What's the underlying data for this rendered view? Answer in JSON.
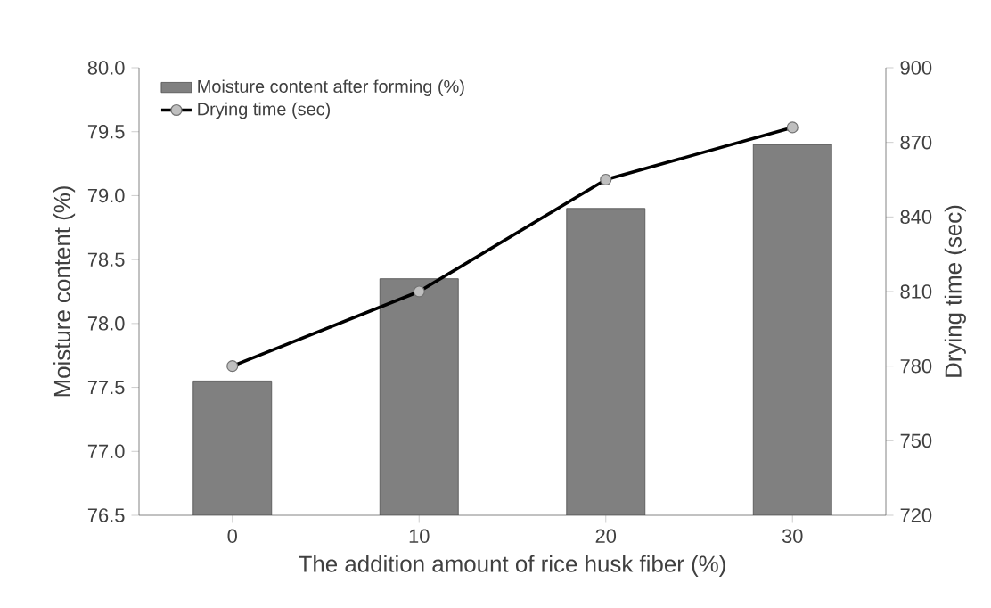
{
  "chart_data": {
    "type": "bar",
    "xlabel": "The addition amount of rice husk fiber (%)",
    "ylabel": "Moisture content (%)",
    "y2label": "Drying time (sec)",
    "categories": [
      "0",
      "10",
      "20",
      "30"
    ],
    "series": [
      {
        "name": "Moisture content after forming (%)",
        "color": "#808080",
        "values": [
          77.55,
          78.35,
          78.9,
          79.4
        ]
      },
      {
        "name": "Drying time (sec)",
        "type": "line",
        "axis": "y2",
        "color": "#000000",
        "marker": "circle",
        "values": [
          780,
          810,
          855,
          876
        ]
      }
    ],
    "ylim": [
      76.5,
      80
    ],
    "yticks": [
      76.5,
      {
        "value": 77,
        "label": "77.0"
      },
      77.5,
      {
        "value": 78,
        "label": "78.0"
      },
      78.5,
      {
        "value": 79,
        "label": "79.0"
      },
      79.5,
      {
        "value": 80,
        "label": "80.0"
      }
    ],
    "y2lim": [
      720,
      900
    ],
    "y2ticks": [
      720,
      750,
      780,
      810,
      840,
      870,
      900
    ],
    "legend": "top left",
    "grid": false
  }
}
